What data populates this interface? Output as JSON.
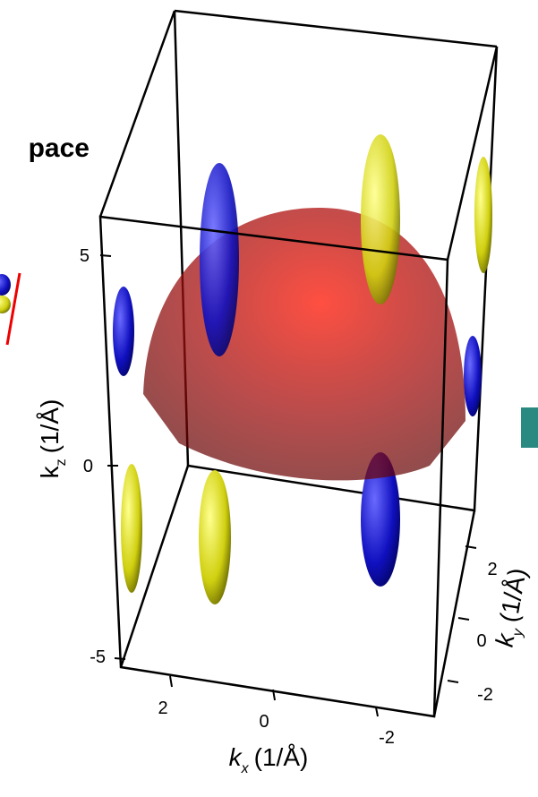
{
  "header": {
    "title_fragment": "pace"
  },
  "axes": {
    "kz": {
      "symbol": "k",
      "subscript": "z",
      "unit": "(1/Å)",
      "ticks": [
        "5",
        "0",
        "-5"
      ]
    },
    "kx": {
      "symbol": "k",
      "subscript": "x",
      "unit": "(1/Å)",
      "ticks": [
        "2",
        "0",
        "-2"
      ]
    },
    "ky": {
      "symbol": "k",
      "subscript": "y",
      "unit": "(1/Å)",
      "ticks": [
        "2",
        "0",
        "-2"
      ]
    }
  }
}
